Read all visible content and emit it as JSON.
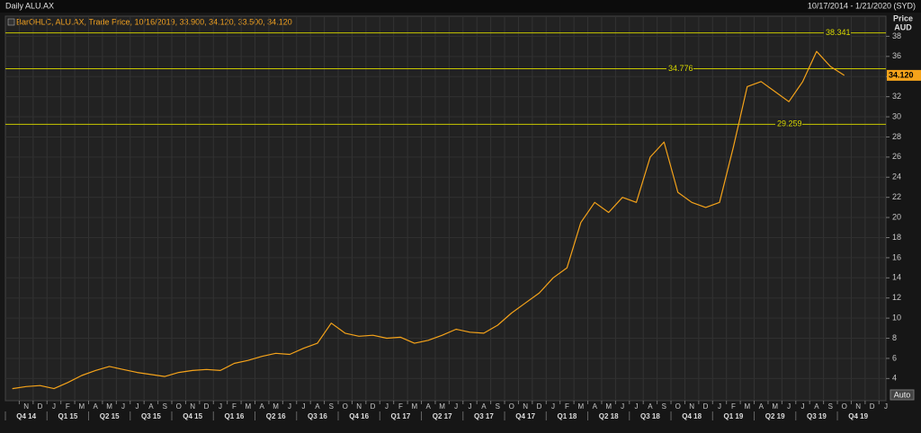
{
  "chart_data": {
    "type": "line",
    "title": "Daily ALU.AX",
    "date_range": "10/17/2014 - 1/21/2020 (SYD)",
    "legend_text": "BarOHLC, ALU.AX, Trade Price, 10/16/2019, 33.900, 34.120, 33.500, 34.120",
    "y_axis_label": "Price",
    "y_axis_unit": "AUD",
    "scale_button": "Auto",
    "x": [
      "2014-10",
      "2014-11",
      "2014-12",
      "2015-01",
      "2015-02",
      "2015-03",
      "2015-04",
      "2015-05",
      "2015-06",
      "2015-07",
      "2015-08",
      "2015-09",
      "2015-10",
      "2015-11",
      "2015-12",
      "2016-01",
      "2016-02",
      "2016-03",
      "2016-04",
      "2016-05",
      "2016-06",
      "2016-07",
      "2016-08",
      "2016-09",
      "2016-10",
      "2016-11",
      "2016-12",
      "2017-01",
      "2017-02",
      "2017-03",
      "2017-04",
      "2017-05",
      "2017-06",
      "2017-07",
      "2017-08",
      "2017-09",
      "2017-10",
      "2017-11",
      "2017-12",
      "2018-01",
      "2018-02",
      "2018-03",
      "2018-04",
      "2018-05",
      "2018-06",
      "2018-07",
      "2018-08",
      "2018-09",
      "2018-10",
      "2018-11",
      "2018-12",
      "2019-01",
      "2019-02",
      "2019-03",
      "2019-04",
      "2019-05",
      "2019-06",
      "2019-07",
      "2019-08",
      "2019-09",
      "2019-10"
    ],
    "series": [
      {
        "name": "ALU.AX",
        "color": "#f5a31a",
        "values": [
          3.0,
          3.2,
          3.3,
          3.0,
          3.6,
          4.3,
          4.8,
          5.2,
          4.9,
          4.6,
          4.4,
          4.2,
          4.6,
          4.8,
          4.9,
          4.8,
          5.5,
          5.8,
          6.2,
          6.5,
          6.4,
          7.0,
          7.5,
          9.5,
          8.5,
          8.2,
          8.3,
          8.0,
          8.1,
          7.5,
          7.8,
          8.3,
          8.9,
          8.6,
          8.5,
          9.3,
          10.5,
          11.5,
          12.5,
          14.0,
          15.0,
          19.5,
          21.5,
          20.5,
          22.0,
          21.5,
          26.0,
          27.5,
          22.5,
          21.5,
          21.0,
          21.5,
          27.0,
          33.0,
          33.5,
          32.5,
          31.5,
          33.5,
          36.5,
          35.0,
          34.12
        ]
      }
    ],
    "price_marker": {
      "value": 34.12,
      "label": "34.120"
    },
    "levels": [
      {
        "value": 38.341,
        "label": "38.341"
      },
      {
        "value": 34.776,
        "label": "34.776"
      },
      {
        "value": 29.259,
        "label": "29.259"
      }
    ],
    "level_color": "#c8c800",
    "xlim": [
      "2014-10",
      "2020-01"
    ],
    "ylim": [
      1.8,
      40
    ],
    "yticks": [
      4,
      6,
      8,
      10,
      12,
      14,
      16,
      18,
      20,
      22,
      24,
      26,
      28,
      30,
      32,
      34,
      36,
      38
    ],
    "x_month_labels": [
      {
        "value": "2014-11",
        "label": "N"
      },
      {
        "value": "2014-12",
        "label": "D"
      },
      {
        "value": "2015-01",
        "label": "J"
      },
      {
        "value": "2015-02",
        "label": "F"
      },
      {
        "value": "2015-03",
        "label": "M"
      },
      {
        "value": "2015-04",
        "label": "A"
      },
      {
        "value": "2015-05",
        "label": "M"
      },
      {
        "value": "2015-06",
        "label": "J"
      },
      {
        "value": "2015-07",
        "label": "J"
      },
      {
        "value": "2015-08",
        "label": "A"
      },
      {
        "value": "2015-09",
        "label": "S"
      },
      {
        "value": "2015-10",
        "label": "O"
      },
      {
        "value": "2015-11",
        "label": "N"
      },
      {
        "value": "2015-12",
        "label": "D"
      },
      {
        "value": "2016-01",
        "label": "J"
      },
      {
        "value": "2016-02",
        "label": "F"
      },
      {
        "value": "2016-03",
        "label": "M"
      },
      {
        "value": "2016-04",
        "label": "A"
      },
      {
        "value": "2016-05",
        "label": "M"
      },
      {
        "value": "2016-06",
        "label": "J"
      },
      {
        "value": "2016-07",
        "label": "J"
      },
      {
        "value": "2016-08",
        "label": "A"
      },
      {
        "value": "2016-09",
        "label": "S"
      },
      {
        "value": "2016-10",
        "label": "O"
      },
      {
        "value": "2016-11",
        "label": "N"
      },
      {
        "value": "2016-12",
        "label": "D"
      },
      {
        "value": "2017-01",
        "label": "J"
      },
      {
        "value": "2017-02",
        "label": "F"
      },
      {
        "value": "2017-03",
        "label": "M"
      },
      {
        "value": "2017-04",
        "label": "A"
      },
      {
        "value": "2017-05",
        "label": "M"
      },
      {
        "value": "2017-06",
        "label": "J"
      },
      {
        "value": "2017-07",
        "label": "J"
      },
      {
        "value": "2017-08",
        "label": "A"
      },
      {
        "value": "2017-09",
        "label": "S"
      },
      {
        "value": "2017-10",
        "label": "O"
      },
      {
        "value": "2017-11",
        "label": "N"
      },
      {
        "value": "2017-12",
        "label": "D"
      },
      {
        "value": "2018-01",
        "label": "J"
      },
      {
        "value": "2018-02",
        "label": "F"
      },
      {
        "value": "2018-03",
        "label": "M"
      },
      {
        "value": "2018-04",
        "label": "A"
      },
      {
        "value": "2018-05",
        "label": "M"
      },
      {
        "value": "2018-06",
        "label": "J"
      },
      {
        "value": "2018-07",
        "label": "J"
      },
      {
        "value": "2018-08",
        "label": "A"
      },
      {
        "value": "2018-09",
        "label": "S"
      },
      {
        "value": "2018-10",
        "label": "O"
      },
      {
        "value": "2018-11",
        "label": "N"
      },
      {
        "value": "2018-12",
        "label": "D"
      },
      {
        "value": "2019-01",
        "label": "J"
      },
      {
        "value": "2019-02",
        "label": "F"
      },
      {
        "value": "2019-03",
        "label": "M"
      },
      {
        "value": "2019-04",
        "label": "A"
      },
      {
        "value": "2019-05",
        "label": "M"
      },
      {
        "value": "2019-06",
        "label": "J"
      },
      {
        "value": "2019-07",
        "label": "J"
      },
      {
        "value": "2019-08",
        "label": "A"
      },
      {
        "value": "2019-09",
        "label": "S"
      },
      {
        "value": "2019-10",
        "label": "O"
      },
      {
        "value": "2019-11",
        "label": "N"
      },
      {
        "value": "2019-12",
        "label": "D"
      },
      {
        "value": "2020-01",
        "label": "J"
      }
    ],
    "x_quarter_labels": [
      {
        "value": "2014-10",
        "label": "Q4 14"
      },
      {
        "value": "2015-01",
        "label": "Q1 15"
      },
      {
        "value": "2015-04",
        "label": "Q2 15"
      },
      {
        "value": "2015-07",
        "label": "Q3 15"
      },
      {
        "value": "2015-10",
        "label": "Q4 15"
      },
      {
        "value": "2016-01",
        "label": "Q1 16"
      },
      {
        "value": "2016-04",
        "label": "Q2 16"
      },
      {
        "value": "2016-07",
        "label": "Q3 16"
      },
      {
        "value": "2016-10",
        "label": "Q4 16"
      },
      {
        "value": "2017-01",
        "label": "Q1 17"
      },
      {
        "value": "2017-04",
        "label": "Q2 17"
      },
      {
        "value": "2017-07",
        "label": "Q3 17"
      },
      {
        "value": "2017-10",
        "label": "Q4 17"
      },
      {
        "value": "2018-01",
        "label": "Q1 18"
      },
      {
        "value": "2018-04",
        "label": "Q2 18"
      },
      {
        "value": "2018-07",
        "label": "Q3 18"
      },
      {
        "value": "2018-10",
        "label": "Q4 18"
      },
      {
        "value": "2019-01",
        "label": "Q1 19"
      },
      {
        "value": "2019-04",
        "label": "Q2 19"
      },
      {
        "value": "2019-07",
        "label": "Q3 19"
      },
      {
        "value": "2019-10",
        "label": "Q4 19"
      }
    ],
    "grid": true
  }
}
